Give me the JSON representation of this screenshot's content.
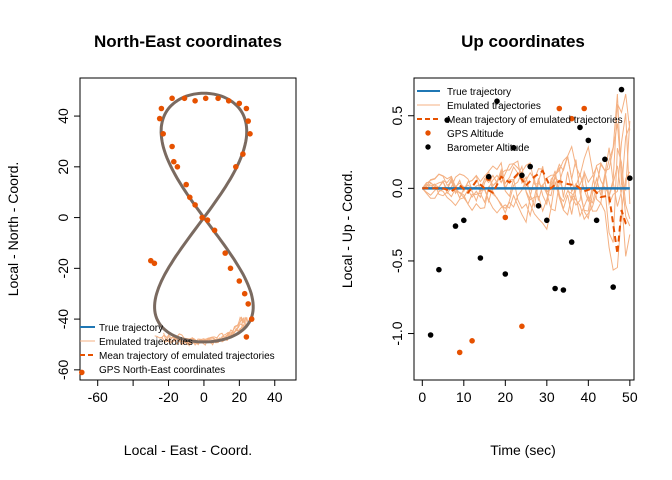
{
  "colors": {
    "true_trajectory": "#1f77b4",
    "emulated": "#f4b183",
    "mean": "#e65100",
    "gps": "#e65100",
    "barometer": "#000000",
    "true_ne": "#7a6a60"
  },
  "chart_data": [
    {
      "type": "scatter",
      "title": "North-East coordinates",
      "xlabel": "Local - East - Coord.",
      "ylabel": "Local - North - Coord.",
      "xlim": [
        -70,
        52
      ],
      "ylim": [
        -64,
        55
      ],
      "x_ticks": [
        -60,
        -40,
        -20,
        0,
        20,
        40
      ],
      "x_tick_labels": [
        "-60",
        "",
        "-20",
        "0",
        "20",
        "40"
      ],
      "y_ticks": [
        -60,
        -40,
        -20,
        0,
        20,
        40
      ],
      "y_tick_labels": [
        "-60",
        "-40",
        "-20",
        "0",
        "20",
        "40"
      ],
      "legend": {
        "placement": "bottom-left",
        "entries": [
          "True trajectory",
          "Emulated trajectories",
          "Mean trajectory of emulated trajectories",
          "GPS North-East coordinates"
        ]
      },
      "gps_points": [
        [
          -1,
          0
        ],
        [
          2,
          -1
        ],
        [
          6,
          -5
        ],
        [
          12,
          -14
        ],
        [
          15,
          -20
        ],
        [
          20,
          -25
        ],
        [
          23,
          -30
        ],
        [
          25,
          -34
        ],
        [
          27,
          -40
        ],
        [
          24,
          -47
        ],
        [
          -5,
          5
        ],
        [
          -8,
          8
        ],
        [
          -10,
          13
        ],
        [
          -15,
          20
        ],
        [
          -17,
          22
        ],
        [
          -18,
          28
        ],
        [
          -23,
          33
        ],
        [
          -25,
          39
        ],
        [
          -24,
          43
        ],
        [
          -18,
          47
        ],
        [
          -11,
          47
        ],
        [
          -5,
          46
        ],
        [
          1,
          47
        ],
        [
          8,
          47
        ],
        [
          14,
          46
        ],
        [
          20,
          45
        ],
        [
          24,
          43
        ],
        [
          25,
          38
        ],
        [
          26,
          33
        ],
        [
          22,
          25
        ],
        [
          18,
          20
        ],
        [
          -28,
          -18
        ],
        [
          -30,
          -17
        ],
        [
          -69,
          -61
        ]
      ]
    },
    {
      "type": "line",
      "title": "Up coordinates",
      "xlabel": "Time (sec)",
      "ylabel": "Local - Up - Coord.",
      "xlim": [
        -2,
        51
      ],
      "ylim": [
        -1.32,
        0.76
      ],
      "x_ticks": [
        0,
        10,
        20,
        30,
        40,
        50
      ],
      "x_tick_labels": [
        "0",
        "10",
        "20",
        "30",
        "40",
        "50"
      ],
      "y_ticks": [
        -1.0,
        -0.5,
        0.0,
        0.5
      ],
      "y_tick_labels": [
        "-1.0",
        "-0.5",
        "0.0",
        "0.5"
      ],
      "legend": {
        "placement": "top-left",
        "entries": [
          "True trajectory",
          "Emulated trajectories",
          "Mean trajectory of emulated trajectories",
          "GPS Altitude",
          "Barometer Altitude"
        ]
      },
      "true_trajectory": {
        "x": [
          0,
          50
        ],
        "y": [
          0,
          0
        ]
      },
      "mean_trajectory": {
        "x": [
          0,
          5,
          7,
          9,
          11,
          13,
          15,
          17,
          19,
          21,
          23,
          25,
          27,
          29,
          31,
          33,
          35,
          37,
          39,
          41,
          43,
          45,
          47,
          48,
          49,
          50
        ],
        "y": [
          0,
          0,
          -0.02,
          0.02,
          -0.03,
          0.05,
          0.0,
          -0.03,
          0.08,
          0.04,
          0.1,
          0.02,
          0.08,
          0.12,
          0.0,
          0.05,
          0.03,
          0.02,
          -0.02,
          0.0,
          -0.06,
          -0.05,
          -0.45,
          -0.15,
          -0.24,
          -0.23
        ]
      },
      "gps_altitude": {
        "x": [
          9,
          12,
          16,
          20,
          24,
          33,
          36,
          39
        ],
        "y": [
          -1.13,
          -1.05,
          0.07,
          -0.2,
          -0.95,
          0.55,
          0.48,
          0.55
        ]
      },
      "barometer_altitude": {
        "x": [
          2,
          4,
          6,
          8,
          10,
          14,
          16,
          18,
          20,
          22,
          24,
          26,
          28,
          30,
          32,
          34,
          36,
          38,
          40,
          42,
          44,
          46,
          48,
          50
        ],
        "y": [
          -1.01,
          -0.56,
          0.47,
          -0.26,
          -0.22,
          -0.48,
          0.08,
          0.6,
          -0.59,
          0.28,
          0.09,
          0.15,
          -0.12,
          -0.22,
          -0.69,
          -0.7,
          -0.37,
          0.42,
          0.33,
          -0.22,
          0.2,
          -0.68,
          0.68,
          0.07
        ]
      }
    }
  ]
}
